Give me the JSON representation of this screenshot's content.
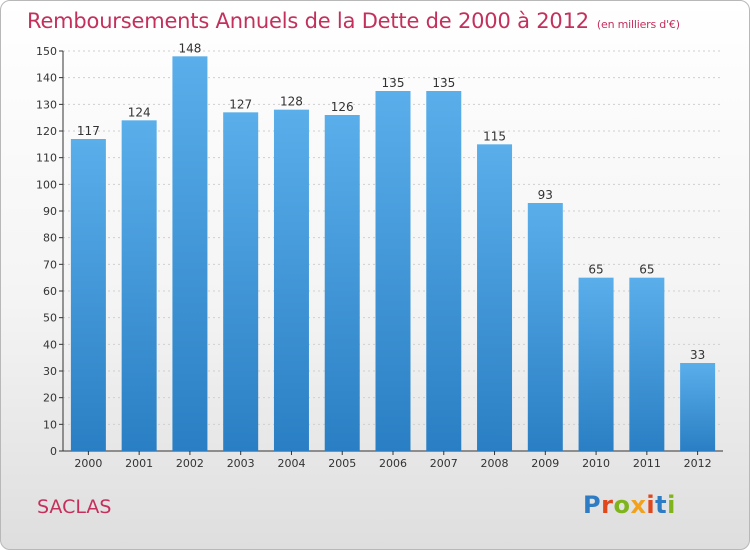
{
  "header": {
    "title": "Remboursements Annuels de la Dette de 2000 à 2012",
    "unit": "(en milliers d'€)"
  },
  "footer": {
    "city": "SACLAS",
    "logo": "Proxiti"
  },
  "colors": {
    "title": "#c4305c",
    "bar_top": "#5aaeea",
    "bar_bottom": "#2a7fc4",
    "axis": "#333333",
    "grid": "#cfcfcf"
  },
  "chart_data": {
    "type": "bar",
    "title": "Remboursements Annuels de la Dette de 2000 à 2012",
    "subtitle": "(en milliers d'€)",
    "categories": [
      "2000",
      "2001",
      "2002",
      "2003",
      "2004",
      "2005",
      "2006",
      "2007",
      "2008",
      "2009",
      "2010",
      "2011",
      "2012"
    ],
    "values": [
      117,
      124,
      148,
      127,
      128,
      126,
      135,
      135,
      115,
      93,
      65,
      65,
      33
    ],
    "ylim": [
      0,
      150
    ],
    "yticks": [
      0,
      10,
      20,
      30,
      40,
      50,
      60,
      70,
      80,
      90,
      100,
      110,
      120,
      130,
      140,
      150
    ],
    "grid": true,
    "data_labels": true
  }
}
